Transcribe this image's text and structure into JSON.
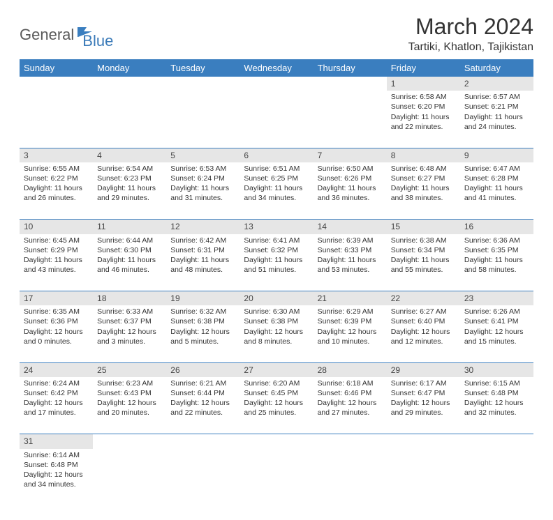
{
  "logo": {
    "part1": "General",
    "part2": "Blue"
  },
  "title": "March 2024",
  "location": "Tartiki, Khatlon, Tajikistan",
  "colors": {
    "header_bg": "#3a7ebf",
    "header_text": "#ffffff",
    "daynum_bg": "#e6e6e6",
    "border": "#3a7ebf",
    "logo_gray": "#5a5a5a",
    "logo_blue": "#3a7ab8"
  },
  "day_headers": [
    "Sunday",
    "Monday",
    "Tuesday",
    "Wednesday",
    "Thursday",
    "Friday",
    "Saturday"
  ],
  "weeks": [
    {
      "numbers": [
        "",
        "",
        "",
        "",
        "",
        "1",
        "2"
      ],
      "cells": [
        null,
        null,
        null,
        null,
        null,
        {
          "sunrise": "Sunrise: 6:58 AM",
          "sunset": "Sunset: 6:20 PM",
          "daylight": "Daylight: 11 hours and 22 minutes."
        },
        {
          "sunrise": "Sunrise: 6:57 AM",
          "sunset": "Sunset: 6:21 PM",
          "daylight": "Daylight: 11 hours and 24 minutes."
        }
      ]
    },
    {
      "numbers": [
        "3",
        "4",
        "5",
        "6",
        "7",
        "8",
        "9"
      ],
      "cells": [
        {
          "sunrise": "Sunrise: 6:55 AM",
          "sunset": "Sunset: 6:22 PM",
          "daylight": "Daylight: 11 hours and 26 minutes."
        },
        {
          "sunrise": "Sunrise: 6:54 AM",
          "sunset": "Sunset: 6:23 PM",
          "daylight": "Daylight: 11 hours and 29 minutes."
        },
        {
          "sunrise": "Sunrise: 6:53 AM",
          "sunset": "Sunset: 6:24 PM",
          "daylight": "Daylight: 11 hours and 31 minutes."
        },
        {
          "sunrise": "Sunrise: 6:51 AM",
          "sunset": "Sunset: 6:25 PM",
          "daylight": "Daylight: 11 hours and 34 minutes."
        },
        {
          "sunrise": "Sunrise: 6:50 AM",
          "sunset": "Sunset: 6:26 PM",
          "daylight": "Daylight: 11 hours and 36 minutes."
        },
        {
          "sunrise": "Sunrise: 6:48 AM",
          "sunset": "Sunset: 6:27 PM",
          "daylight": "Daylight: 11 hours and 38 minutes."
        },
        {
          "sunrise": "Sunrise: 6:47 AM",
          "sunset": "Sunset: 6:28 PM",
          "daylight": "Daylight: 11 hours and 41 minutes."
        }
      ]
    },
    {
      "numbers": [
        "10",
        "11",
        "12",
        "13",
        "14",
        "15",
        "16"
      ],
      "cells": [
        {
          "sunrise": "Sunrise: 6:45 AM",
          "sunset": "Sunset: 6:29 PM",
          "daylight": "Daylight: 11 hours and 43 minutes."
        },
        {
          "sunrise": "Sunrise: 6:44 AM",
          "sunset": "Sunset: 6:30 PM",
          "daylight": "Daylight: 11 hours and 46 minutes."
        },
        {
          "sunrise": "Sunrise: 6:42 AM",
          "sunset": "Sunset: 6:31 PM",
          "daylight": "Daylight: 11 hours and 48 minutes."
        },
        {
          "sunrise": "Sunrise: 6:41 AM",
          "sunset": "Sunset: 6:32 PM",
          "daylight": "Daylight: 11 hours and 51 minutes."
        },
        {
          "sunrise": "Sunrise: 6:39 AM",
          "sunset": "Sunset: 6:33 PM",
          "daylight": "Daylight: 11 hours and 53 minutes."
        },
        {
          "sunrise": "Sunrise: 6:38 AM",
          "sunset": "Sunset: 6:34 PM",
          "daylight": "Daylight: 11 hours and 55 minutes."
        },
        {
          "sunrise": "Sunrise: 6:36 AM",
          "sunset": "Sunset: 6:35 PM",
          "daylight": "Daylight: 11 hours and 58 minutes."
        }
      ]
    },
    {
      "numbers": [
        "17",
        "18",
        "19",
        "20",
        "21",
        "22",
        "23"
      ],
      "cells": [
        {
          "sunrise": "Sunrise: 6:35 AM",
          "sunset": "Sunset: 6:36 PM",
          "daylight": "Daylight: 12 hours and 0 minutes."
        },
        {
          "sunrise": "Sunrise: 6:33 AM",
          "sunset": "Sunset: 6:37 PM",
          "daylight": "Daylight: 12 hours and 3 minutes."
        },
        {
          "sunrise": "Sunrise: 6:32 AM",
          "sunset": "Sunset: 6:38 PM",
          "daylight": "Daylight: 12 hours and 5 minutes."
        },
        {
          "sunrise": "Sunrise: 6:30 AM",
          "sunset": "Sunset: 6:38 PM",
          "daylight": "Daylight: 12 hours and 8 minutes."
        },
        {
          "sunrise": "Sunrise: 6:29 AM",
          "sunset": "Sunset: 6:39 PM",
          "daylight": "Daylight: 12 hours and 10 minutes."
        },
        {
          "sunrise": "Sunrise: 6:27 AM",
          "sunset": "Sunset: 6:40 PM",
          "daylight": "Daylight: 12 hours and 12 minutes."
        },
        {
          "sunrise": "Sunrise: 6:26 AM",
          "sunset": "Sunset: 6:41 PM",
          "daylight": "Daylight: 12 hours and 15 minutes."
        }
      ]
    },
    {
      "numbers": [
        "24",
        "25",
        "26",
        "27",
        "28",
        "29",
        "30"
      ],
      "cells": [
        {
          "sunrise": "Sunrise: 6:24 AM",
          "sunset": "Sunset: 6:42 PM",
          "daylight": "Daylight: 12 hours and 17 minutes."
        },
        {
          "sunrise": "Sunrise: 6:23 AM",
          "sunset": "Sunset: 6:43 PM",
          "daylight": "Daylight: 12 hours and 20 minutes."
        },
        {
          "sunrise": "Sunrise: 6:21 AM",
          "sunset": "Sunset: 6:44 PM",
          "daylight": "Daylight: 12 hours and 22 minutes."
        },
        {
          "sunrise": "Sunrise: 6:20 AM",
          "sunset": "Sunset: 6:45 PM",
          "daylight": "Daylight: 12 hours and 25 minutes."
        },
        {
          "sunrise": "Sunrise: 6:18 AM",
          "sunset": "Sunset: 6:46 PM",
          "daylight": "Daylight: 12 hours and 27 minutes."
        },
        {
          "sunrise": "Sunrise: 6:17 AM",
          "sunset": "Sunset: 6:47 PM",
          "daylight": "Daylight: 12 hours and 29 minutes."
        },
        {
          "sunrise": "Sunrise: 6:15 AM",
          "sunset": "Sunset: 6:48 PM",
          "daylight": "Daylight: 12 hours and 32 minutes."
        }
      ]
    },
    {
      "numbers": [
        "31",
        "",
        "",
        "",
        "",
        "",
        ""
      ],
      "cells": [
        {
          "sunrise": "Sunrise: 6:14 AM",
          "sunset": "Sunset: 6:48 PM",
          "daylight": "Daylight: 12 hours and 34 minutes."
        },
        null,
        null,
        null,
        null,
        null,
        null
      ]
    }
  ]
}
